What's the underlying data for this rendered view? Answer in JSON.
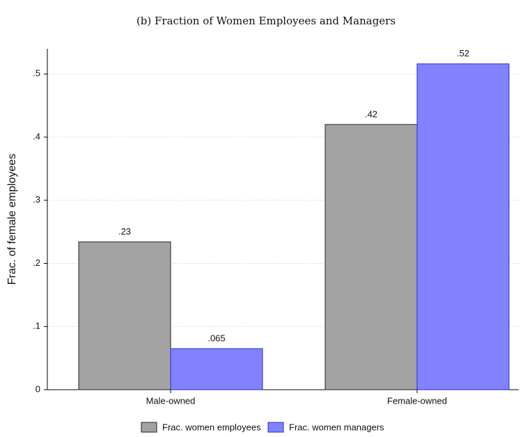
{
  "chart_data": {
    "type": "bar",
    "title": "(b) Fraction of Women Employees and Managers",
    "y_label": "Frac. of female employees",
    "categories": [
      "Male-owned",
      "Female-owned"
    ],
    "series": [
      {
        "name": "Frac. women employees",
        "color": "#a3a3a3",
        "values": [
          0.234,
          0.42
        ],
        "value_labels": [
          ".23",
          ".42"
        ]
      },
      {
        "name": "Frac. women managers",
        "color": "#8282ff",
        "values": [
          0.065,
          0.516
        ],
        "value_labels": [
          ".065",
          ".52"
        ]
      }
    ],
    "ylim": [
      0,
      0.54
    ],
    "yticks": [
      0,
      {
        "value": 0.1,
        "label": ".1"
      },
      {
        "value": 0.2,
        "label": ".2"
      },
      {
        "value": 0.3,
        "label": ".3"
      },
      {
        "value": 0.4,
        "label": ".4"
      },
      {
        "value": 0.5,
        "label": ".5"
      }
    ],
    "grid": true,
    "legend": "bottom"
  }
}
